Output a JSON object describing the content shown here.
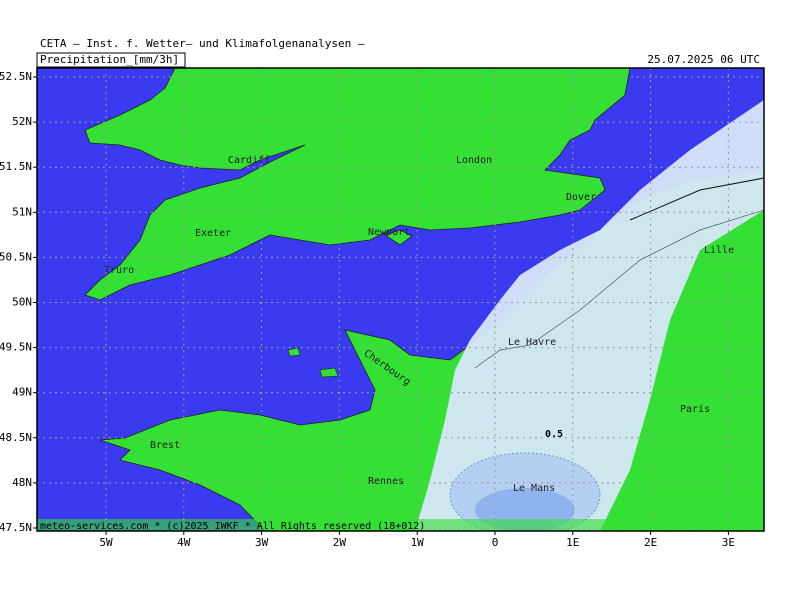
{
  "header": {
    "title": "CETA – Inst. f. Wetter– und Klimafolgenanalysen –",
    "variable": "Precipitation_[mm/3h]",
    "valid_time": "25.07.2025 06 UTC"
  },
  "axes": {
    "latitude": [
      "52.5N",
      "52N",
      "51.5N",
      "51N",
      "50.5N",
      "50N",
      "49.5N",
      "49N",
      "48.5N",
      "48N",
      "47.5N"
    ],
    "longitude": [
      "5W",
      "4W",
      "3W",
      "2W",
      "1W",
      "0",
      "1E",
      "2E",
      "3E"
    ]
  },
  "places": [
    "Cardiff",
    "London",
    "Dover",
    "Exeter",
    "Newport",
    "Truro",
    "Lille",
    "Le Havre",
    "Cherbourg",
    "Paris",
    "Brest",
    "Rennes",
    "Le Mans"
  ],
  "contour_labels": [
    "0.5"
  ],
  "credit": "meteo-services.com * (c)2025 IWKF * All Rights reserved (18+012)"
}
